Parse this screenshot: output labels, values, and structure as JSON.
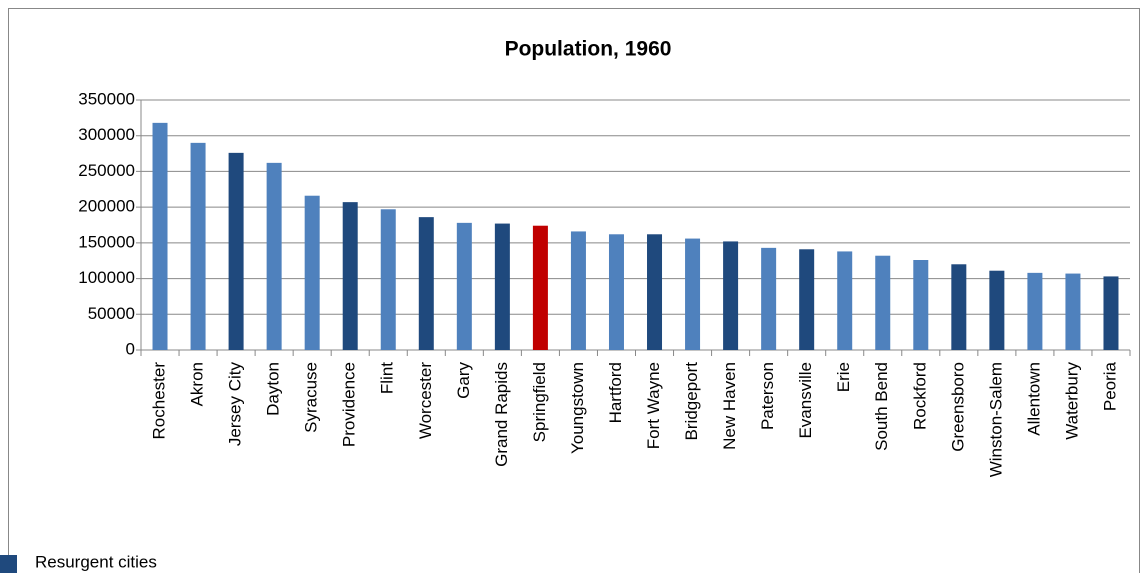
{
  "chart_data": {
    "type": "bar",
    "title": "Population, 1960",
    "categories": [
      "Rochester",
      "Akron",
      "Jersey City",
      "Dayton",
      "Syracuse",
      "Providence",
      "Flint",
      "Worcester",
      "Gary",
      "Grand Rapids",
      "Springfield",
      "Youngstown",
      "Hartford",
      "Fort Wayne",
      "Bridgeport",
      "New Haven",
      "Paterson",
      "Evansville",
      "Erie",
      "South Bend",
      "Rockford",
      "Greensboro",
      "Winston-Salem",
      "Allentown",
      "Waterbury",
      "Peoria"
    ],
    "values": [
      318000,
      290000,
      276000,
      262000,
      216000,
      207000,
      197000,
      186000,
      178000,
      177000,
      174000,
      166000,
      162000,
      162000,
      156000,
      152000,
      143000,
      141000,
      138000,
      132000,
      126000,
      120000,
      111000,
      108000,
      107000,
      103000
    ],
    "colors": [
      "#4f81bd",
      "#4f81bd",
      "#1f497d",
      "#4f81bd",
      "#4f81bd",
      "#1f497d",
      "#4f81bd",
      "#1f497d",
      "#4f81bd",
      "#1f497d",
      "#c00000",
      "#4f81bd",
      "#4f81bd",
      "#1f497d",
      "#4f81bd",
      "#1f497d",
      "#4f81bd",
      "#1f497d",
      "#4f81bd",
      "#4f81bd",
      "#4f81bd",
      "#1f497d",
      "#1f497d",
      "#4f81bd",
      "#4f81bd",
      "#1f497d"
    ],
    "ylim": [
      0,
      350000
    ],
    "yticks": [
      0,
      50000,
      100000,
      150000,
      200000,
      250000,
      300000,
      350000
    ],
    "grid": true,
    "legend": {
      "label": "Resurgent cities",
      "color": "#1f497d",
      "position": "bottom-left"
    }
  }
}
